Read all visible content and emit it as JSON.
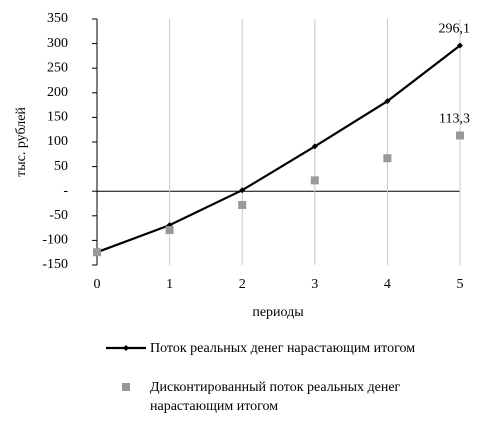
{
  "chart_data": {
    "type": "line",
    "y_label": "тыс. рублей",
    "x_label": "периоды",
    "x": [
      0,
      1,
      2,
      3,
      4,
      5
    ],
    "xlim": [
      0,
      5
    ],
    "xticks": [
      0,
      1,
      2,
      3,
      4,
      5
    ],
    "ylim": [
      -150,
      350
    ],
    "yticks": [
      -150,
      -100,
      -50,
      {
        "value": 0,
        "label": "-"
      },
      50,
      100,
      150,
      200,
      250,
      300,
      350
    ],
    "grid": true,
    "legend": "bottom",
    "series": [
      {
        "name": "Поток реальных денег нарастающим итогом",
        "type": "line",
        "color": "#000000",
        "values": [
          -124,
          -69,
          2,
          91,
          183,
          296.1
        ],
        "value_labels": [
          null,
          null,
          null,
          null,
          null,
          "296,1"
        ]
      },
      {
        "name": "Дисконтированный поток реальных денег нарастающим итогом",
        "type": "scatter",
        "color": "#999999",
        "values": [
          -124,
          -79,
          -28,
          22,
          67,
          113.3
        ],
        "value_labels": [
          null,
          null,
          null,
          null,
          null,
          "113,3"
        ]
      }
    ]
  }
}
